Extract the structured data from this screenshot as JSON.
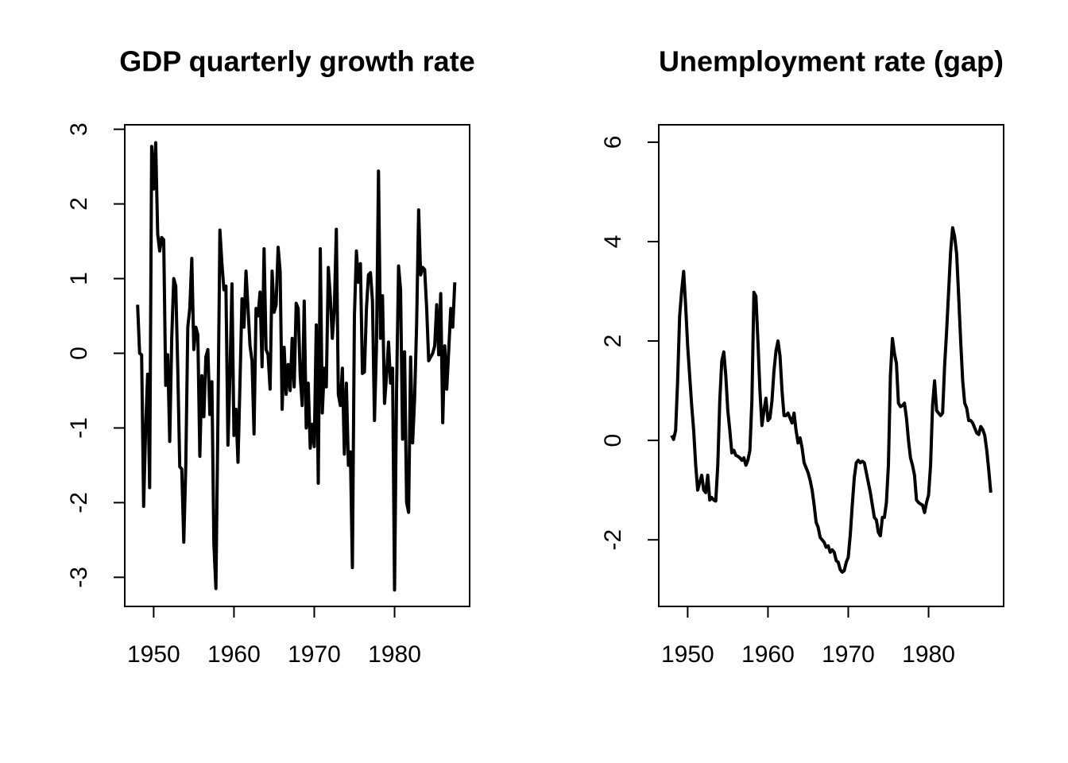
{
  "chart_data": [
    {
      "type": "line",
      "title": "GDP quarterly growth rate",
      "x": [
        1948.0,
        1948.25,
        1948.5,
        1948.75,
        1949.0,
        1949.25,
        1949.5,
        1949.75,
        1950.0,
        1950.25,
        1950.5,
        1950.75,
        1951.0,
        1951.25,
        1951.5,
        1951.75,
        1952.0,
        1952.25,
        1952.5,
        1952.75,
        1953.0,
        1953.25,
        1953.5,
        1953.75,
        1954.0,
        1954.25,
        1954.5,
        1954.75,
        1955.0,
        1955.25,
        1955.5,
        1955.75,
        1956.0,
        1956.25,
        1956.5,
        1956.75,
        1957.0,
        1957.25,
        1957.5,
        1957.75,
        1958.0,
        1958.25,
        1958.5,
        1958.75,
        1959.0,
        1959.25,
        1959.5,
        1959.75,
        1960.0,
        1960.25,
        1960.5,
        1960.75,
        1961.0,
        1961.25,
        1961.5,
        1961.75,
        1962.0,
        1962.25,
        1962.5,
        1962.75,
        1963.0,
        1963.25,
        1963.5,
        1963.75,
        1964.0,
        1964.25,
        1964.5,
        1964.75,
        1965.0,
        1965.25,
        1965.5,
        1965.75,
        1966.0,
        1966.25,
        1966.5,
        1966.75,
        1967.0,
        1967.25,
        1967.5,
        1967.75,
        1968.0,
        1968.25,
        1968.5,
        1968.75,
        1969.0,
        1969.25,
        1969.5,
        1969.75,
        1970.0,
        1970.25,
        1970.5,
        1970.75,
        1971.0,
        1971.25,
        1971.5,
        1971.75,
        1972.0,
        1972.25,
        1972.5,
        1972.75,
        1973.0,
        1973.25,
        1973.5,
        1973.75,
        1974.0,
        1974.25,
        1974.5,
        1974.75,
        1975.0,
        1975.25,
        1975.5,
        1975.75,
        1976.0,
        1976.25,
        1976.5,
        1976.75,
        1977.0,
        1977.25,
        1977.5,
        1977.75,
        1978.0,
        1978.25,
        1978.5,
        1978.75,
        1979.0,
        1979.25,
        1979.5,
        1979.75,
        1980.0,
        1980.25,
        1980.5,
        1980.75,
        1981.0,
        1981.25,
        1981.5,
        1981.75,
        1982.0,
        1982.25,
        1982.5,
        1982.75,
        1983.0,
        1983.25,
        1983.5,
        1983.75,
        1984.0,
        1984.25,
        1984.5,
        1984.75,
        1985.0,
        1985.25,
        1985.5,
        1985.75,
        1986.0,
        1986.25,
        1986.5,
        1986.75,
        1987.0,
        1987.25,
        1987.5
      ],
      "series": [
        {
          "color": "#000000",
          "values": [
            0.65,
            0.0,
            -0.02,
            -2.05,
            -1.0,
            -0.28,
            -1.8,
            2.77,
            2.2,
            2.82,
            1.6,
            1.37,
            1.55,
            1.52,
            -0.43,
            -0.02,
            -1.18,
            0.2,
            1.0,
            0.9,
            -0.2,
            -1.52,
            -1.55,
            -2.53,
            -1.5,
            0.35,
            0.6,
            1.27,
            0.05,
            0.35,
            0.25,
            -1.38,
            -0.3,
            -0.85,
            -0.05,
            0.05,
            -0.82,
            -0.38,
            -2.55,
            -3.15,
            -0.9,
            1.65,
            1.2,
            0.85,
            0.9,
            -1.23,
            -0.3,
            0.93,
            -1.1,
            -0.75,
            -1.46,
            -0.4,
            0.73,
            0.35,
            1.1,
            0.6,
            0.1,
            -0.1,
            -1.08,
            0.6,
            0.5,
            0.82,
            -0.18,
            1.4,
            0.05,
            -0.02,
            -0.48,
            1.1,
            0.55,
            0.65,
            1.42,
            1.1,
            -0.75,
            0.08,
            -0.55,
            -0.15,
            -0.5,
            0.2,
            -0.45,
            0.67,
            0.6,
            -0.3,
            -0.7,
            0.7,
            -1.0,
            -0.4,
            -1.27,
            -0.95,
            -1.25,
            0.38,
            -1.74,
            1.4,
            -0.8,
            -0.2,
            -0.45,
            1.15,
            0.75,
            0.2,
            0.6,
            1.66,
            -0.55,
            -0.7,
            -0.2,
            -1.35,
            -0.4,
            -1.5,
            -1.32,
            -2.87,
            0.5,
            1.37,
            0.95,
            1.2,
            -0.27,
            -0.25,
            0.6,
            1.05,
            1.08,
            0.7,
            -0.9,
            0.1,
            2.44,
            0.2,
            0.77,
            -0.67,
            -0.3,
            0.15,
            -0.4,
            -0.2,
            -3.17,
            -0.5,
            1.17,
            0.85,
            -1.15,
            0.02,
            -2.0,
            -2.13,
            -0.05,
            -1.2,
            -0.6,
            0.4,
            1.92,
            1.05,
            1.15,
            1.12,
            0.6,
            -0.1,
            -0.05,
            0.0,
            0.1,
            0.65,
            -0.02,
            0.8,
            -0.93,
            0.1,
            -0.48,
            0.05,
            0.6,
            0.35,
            0.95
          ]
        }
      ],
      "xlim": [
        1946.4,
        1989.35
      ],
      "xticks": [
        1950,
        1960,
        1970,
        1980
      ],
      "ylim": [
        -3.39,
        3.06
      ],
      "yticks": [
        -3,
        -2,
        -1,
        0,
        1,
        2,
        3
      ]
    },
    {
      "type": "line",
      "title": "Unemployment rate (gap)",
      "x": [
        1948.0,
        1948.25,
        1948.5,
        1948.75,
        1949.0,
        1949.25,
        1949.5,
        1949.75,
        1950.0,
        1950.25,
        1950.5,
        1950.75,
        1951.0,
        1951.25,
        1951.5,
        1951.75,
        1952.0,
        1952.25,
        1952.5,
        1952.75,
        1953.0,
        1953.25,
        1953.5,
        1953.75,
        1954.0,
        1954.25,
        1954.5,
        1954.75,
        1955.0,
        1955.25,
        1955.5,
        1955.75,
        1956.0,
        1956.25,
        1956.5,
        1956.75,
        1957.0,
        1957.25,
        1957.5,
        1957.75,
        1958.0,
        1958.25,
        1958.5,
        1958.75,
        1959.0,
        1959.25,
        1959.5,
        1959.75,
        1960.0,
        1960.25,
        1960.5,
        1960.75,
        1961.0,
        1961.25,
        1961.5,
        1961.75,
        1962.0,
        1962.25,
        1962.5,
        1962.75,
        1963.0,
        1963.25,
        1963.5,
        1963.75,
        1964.0,
        1964.25,
        1964.5,
        1964.75,
        1965.0,
        1965.25,
        1965.5,
        1965.75,
        1966.0,
        1966.25,
        1966.5,
        1966.75,
        1967.0,
        1967.25,
        1967.5,
        1967.75,
        1968.0,
        1968.25,
        1968.5,
        1968.75,
        1969.0,
        1969.25,
        1969.5,
        1969.75,
        1970.0,
        1970.25,
        1970.5,
        1970.75,
        1971.0,
        1971.25,
        1971.5,
        1971.75,
        1972.0,
        1972.25,
        1972.5,
        1972.75,
        1973.0,
        1973.25,
        1973.5,
        1973.75,
        1974.0,
        1974.25,
        1974.5,
        1974.75,
        1975.0,
        1975.25,
        1975.5,
        1975.75,
        1976.0,
        1976.25,
        1976.5,
        1976.75,
        1977.0,
        1977.25,
        1977.5,
        1977.75,
        1978.0,
        1978.25,
        1978.5,
        1978.75,
        1979.0,
        1979.25,
        1979.5,
        1979.75,
        1980.0,
        1980.25,
        1980.5,
        1980.75,
        1981.0,
        1981.25,
        1981.5,
        1981.75,
        1982.0,
        1982.25,
        1982.5,
        1982.75,
        1983.0,
        1983.25,
        1983.5,
        1983.75,
        1984.0,
        1984.25,
        1984.5,
        1984.75,
        1985.0,
        1985.25,
        1985.5,
        1985.75,
        1986.0,
        1986.25,
        1986.5,
        1986.75,
        1987.0,
        1987.25,
        1987.5,
        1987.75
      ],
      "series": [
        {
          "color": "#000000",
          "values": [
            0.1,
            0.02,
            0.2,
            1.2,
            2.5,
            3.0,
            3.4,
            2.7,
            1.9,
            1.3,
            0.7,
            0.2,
            -0.5,
            -1.0,
            -0.85,
            -0.7,
            -1.0,
            -1.05,
            -0.7,
            -1.2,
            -1.15,
            -1.2,
            -1.22,
            -0.5,
            0.8,
            1.6,
            1.78,
            1.3,
            0.6,
            0.2,
            -0.25,
            -0.2,
            -0.3,
            -0.32,
            -0.35,
            -0.4,
            -0.35,
            -0.5,
            -0.4,
            -0.2,
            0.8,
            2.98,
            2.9,
            2.0,
            1.0,
            0.3,
            0.6,
            0.85,
            0.4,
            0.45,
            0.8,
            1.4,
            1.8,
            2.0,
            1.7,
            1.0,
            0.5,
            0.5,
            0.55,
            0.45,
            0.35,
            0.55,
            0.2,
            -0.05,
            0.05,
            -0.15,
            -0.45,
            -0.55,
            -0.65,
            -0.8,
            -1.0,
            -1.3,
            -1.65,
            -1.75,
            -1.95,
            -2.0,
            -2.05,
            -2.15,
            -2.12,
            -2.25,
            -2.2,
            -2.25,
            -2.42,
            -2.45,
            -2.6,
            -2.65,
            -2.62,
            -2.45,
            -2.35,
            -1.9,
            -1.3,
            -0.75,
            -0.45,
            -0.4,
            -0.45,
            -0.42,
            -0.45,
            -0.65,
            -0.85,
            -1.05,
            -1.3,
            -1.55,
            -1.6,
            -1.85,
            -1.92,
            -1.55,
            -1.55,
            -1.25,
            -0.5,
            1.3,
            2.05,
            1.75,
            1.55,
            0.75,
            0.68,
            0.7,
            0.75,
            0.45,
            0.0,
            -0.35,
            -0.5,
            -0.7,
            -1.2,
            -1.25,
            -1.28,
            -1.3,
            -1.45,
            -1.25,
            -1.1,
            -0.5,
            0.7,
            1.2,
            0.6,
            0.55,
            0.5,
            0.55,
            1.5,
            2.2,
            3.0,
            3.8,
            4.28,
            4.1,
            3.75,
            2.9,
            2.0,
            1.2,
            0.75,
            0.65,
            0.4,
            0.4,
            0.35,
            0.25,
            0.15,
            0.12,
            0.28,
            0.22,
            0.1,
            -0.2,
            -0.6,
            -1.05
          ]
        }
      ],
      "xlim": [
        1946.4,
        1989.35
      ],
      "xticks": [
        1950,
        1960,
        1970,
        1980
      ],
      "ylim": [
        -3.34,
        6.35
      ],
      "yticks": [
        -2,
        0,
        2,
        4,
        6
      ]
    }
  ]
}
